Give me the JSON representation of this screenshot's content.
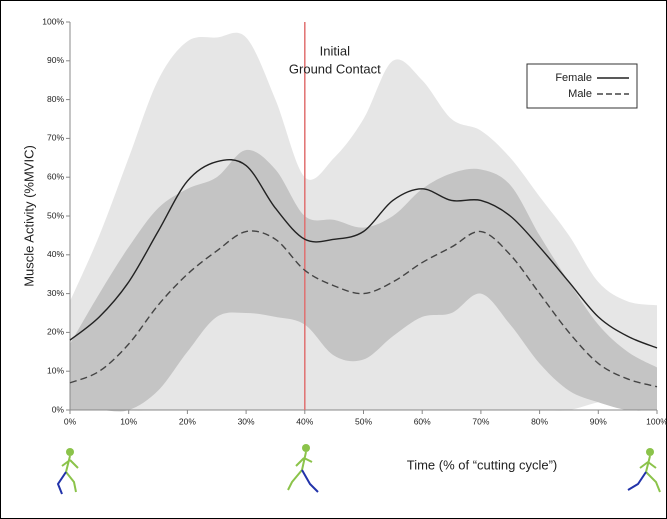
{
  "chart_data": {
    "type": "line",
    "y_label": "Muscle Activity (%MVIC)",
    "x_label": "Time (% of “cutting cycle”)",
    "x": [
      0,
      5,
      10,
      15,
      20,
      25,
      30,
      35,
      40,
      45,
      50,
      55,
      60,
      65,
      70,
      75,
      80,
      85,
      90,
      95,
      100
    ],
    "xlim": [
      0,
      100
    ],
    "ylim": [
      0,
      100
    ],
    "xticks": [
      {
        "value": 0,
        "label": "0%"
      },
      {
        "value": 10,
        "label": "10%"
      },
      {
        "value": 20,
        "label": "20%"
      },
      {
        "value": 30,
        "label": "30%"
      },
      {
        "value": 40,
        "label": "40%"
      },
      {
        "value": 50,
        "label": "50%"
      },
      {
        "value": 60,
        "label": "60%"
      },
      {
        "value": 70,
        "label": "70%"
      },
      {
        "value": 80,
        "label": "80%"
      },
      {
        "value": 90,
        "label": "90%"
      },
      {
        "value": 100,
        "label": "100%"
      }
    ],
    "yticks": [
      {
        "value": 0,
        "label": "0%"
      },
      {
        "value": 10,
        "label": "10%"
      },
      {
        "value": 20,
        "label": "20%"
      },
      {
        "value": 30,
        "label": "30%"
      },
      {
        "value": 40,
        "label": "40%"
      },
      {
        "value": 50,
        "label": "50%"
      },
      {
        "value": 60,
        "label": "60%"
      },
      {
        "value": 70,
        "label": "70%"
      },
      {
        "value": 80,
        "label": "80%"
      },
      {
        "value": 90,
        "label": "90%"
      },
      {
        "value": 100,
        "label": "100%"
      }
    ],
    "legend": "top-right",
    "series": [
      {
        "name": "Female",
        "color": "#222222",
        "dash": "solid",
        "band_color": "#e6e6e6",
        "values": [
          18,
          24,
          33,
          46,
          59,
          64,
          63,
          52,
          44,
          44,
          46,
          54,
          57,
          54,
          54,
          50,
          42,
          33,
          24,
          19,
          16
        ],
        "upper": [
          28,
          45,
          65,
          85,
          95,
          96,
          96,
          80,
          60,
          65,
          75,
          90,
          85,
          75,
          72,
          65,
          55,
          45,
          33,
          28,
          27
        ],
        "lower": [
          8,
          2,
          0,
          0,
          0,
          0,
          0,
          0,
          0,
          0,
          0,
          0,
          0,
          0,
          0,
          0,
          0,
          0,
          2,
          3,
          3
        ]
      },
      {
        "name": "Male",
        "color": "#444444",
        "dash": "dashed",
        "band_color": "#c4c4c4",
        "values": [
          7,
          10,
          17,
          27,
          35,
          41,
          46,
          44,
          36,
          32,
          30,
          33,
          38,
          42,
          46,
          40,
          30,
          20,
          12,
          8,
          6
        ],
        "upper": [
          17,
          30,
          42,
          52,
          57,
          60,
          67,
          62,
          50,
          49,
          47,
          50,
          57,
          61,
          62,
          58,
          45,
          33,
          22,
          15,
          11
        ],
        "lower": [
          0,
          0,
          0,
          5,
          15,
          24,
          25,
          24,
          22,
          14,
          13,
          19,
          24,
          25,
          30,
          22,
          12,
          5,
          2,
          0,
          0
        ]
      }
    ],
    "annotations": [
      {
        "x": 40,
        "text": [
          "Initial",
          "Ground Contact"
        ],
        "color": "#e07070"
      }
    ]
  }
}
